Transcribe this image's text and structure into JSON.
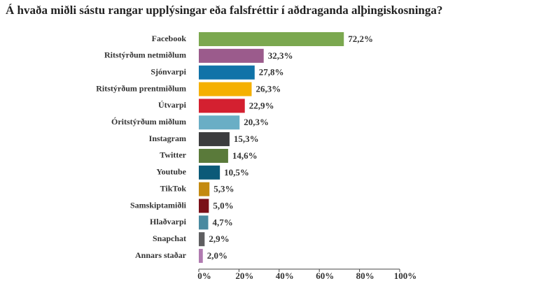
{
  "chart_data": {
    "type": "hbar",
    "title": "Á hvaða miðli sástu rangar upplýsingar eða falsfréttir í aðdraganda alþingiskosninga?",
    "categories": [
      "Facebook",
      "Ritstýrðum netmiðlum",
      "Sjónvarpi",
      "Ritstýrðum prentmiðlum",
      "Útvarpi",
      "Óritstýrðum miðlum",
      "Instagram",
      "Twitter",
      "Youtube",
      "TikTok",
      "Samskiptamiðli",
      "Hlaðvarpi",
      "Snapchat",
      "Annars staðar"
    ],
    "values": [
      72.2,
      32.3,
      27.8,
      26.3,
      22.9,
      20.3,
      15.3,
      14.6,
      10.5,
      5.3,
      5.0,
      4.7,
      2.9,
      2.0
    ],
    "value_labels": [
      "72,2%",
      "32,3%",
      "27,8%",
      "26,3%",
      "22,9%",
      "20,3%",
      "15,3%",
      "14,6%",
      "10,5%",
      "5,3%",
      "5,0%",
      "4,7%",
      "2,9%",
      "2,0%"
    ],
    "colors": [
      "#7ba84f",
      "#9b5b8c",
      "#1173a8",
      "#f5b000",
      "#d42030",
      "#6aaec5",
      "#3c3c3e",
      "#5a7a3a",
      "#0b5a78",
      "#c48a10",
      "#7a1018",
      "#4a8aa0",
      "#5e5e60",
      "#b07ab0"
    ],
    "xlim": [
      0,
      100
    ],
    "xticks": [
      {
        "value": 0,
        "label": "0%"
      },
      {
        "value": 20,
        "label": "20%"
      },
      {
        "value": 40,
        "label": "40%"
      },
      {
        "value": 60,
        "label": "60%"
      },
      {
        "value": 80,
        "label": "80%"
      },
      {
        "value": 100,
        "label": "100%"
      }
    ]
  }
}
